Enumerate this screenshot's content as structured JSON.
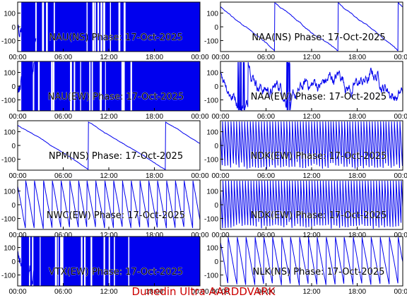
{
  "footer": {
    "text": "Dunedin Ultra AARDDVARK",
    "color": "#cc0000"
  },
  "colors": {
    "trace": "#0000ee",
    "axis": "#000000",
    "background": "#ffffff"
  },
  "chart_data": [
    {
      "type": "line",
      "title": "NAU(NS) Phase: 17-Oct-2025",
      "x_ticks": [
        "00:00",
        "06:00",
        "12:00",
        "18:00",
        "00:00"
      ],
      "y_ticks": [
        "100",
        "0",
        "-100"
      ],
      "xlim": [
        0,
        24
      ],
      "ylim": [
        -180,
        180
      ],
      "pattern": "solid-fill",
      "density": 0.95
    },
    {
      "type": "line",
      "title": "NAA(NS) Phase: 17-Oct-2025",
      "x_ticks": [
        "00:00",
        "06:00",
        "12:00",
        "18:00",
        "00:00"
      ],
      "y_ticks": [
        "100",
        "0",
        "-100"
      ],
      "xlim": [
        0,
        24
      ],
      "ylim": [
        -180,
        180
      ],
      "pattern": "slow-drift",
      "density": 0.4
    },
    {
      "type": "line",
      "title": "NAU(EW) Phase: 17-Oct-2025",
      "x_ticks": [
        "00:00",
        "06:00",
        "12:00",
        "18:00",
        "00:00"
      ],
      "y_ticks": [
        "100",
        "0",
        "-100"
      ],
      "xlim": [
        0,
        24
      ],
      "ylim": [
        -180,
        180
      ],
      "pattern": "solid-fill",
      "density": 0.95
    },
    {
      "type": "line",
      "title": "NAA(EW) Phase: 17-Oct-2025",
      "x_ticks": [
        "00:00",
        "06:00",
        "12:00",
        "18:00",
        "00:00"
      ],
      "y_ticks": [
        "100",
        "0",
        "-100"
      ],
      "xlim": [
        0,
        24
      ],
      "ylim": [
        -180,
        180
      ],
      "pattern": "noisy-drift",
      "density": 0.6
    },
    {
      "type": "line",
      "title": "NPM(NS) Phase: 17-Oct-2025",
      "x_ticks": [
        "00:00",
        "06:00",
        "12:00",
        "18:00",
        "00:00"
      ],
      "y_ticks": [
        "100",
        "0",
        "-100"
      ],
      "xlim": [
        0,
        24
      ],
      "ylim": [
        -180,
        180
      ],
      "pattern": "ramp-down",
      "density": 0.15
    },
    {
      "type": "line",
      "title": "NDK(EW) Phase: 17-Oct-2025",
      "x_ticks": [
        "00:00",
        "06:00",
        "12:00",
        "18:00",
        "00:00"
      ],
      "y_ticks": [
        "100",
        "0",
        "-100"
      ],
      "xlim": [
        0,
        24
      ],
      "ylim": [
        -180,
        180
      ],
      "pattern": "fast-sawtooth",
      "density": 0.8
    },
    {
      "type": "line",
      "title": "NWC(EW) Phase: 17-Oct-2025",
      "x_ticks": [
        "00:00",
        "06:00",
        "12:00",
        "18:00",
        "00:00"
      ],
      "y_ticks": [
        "100",
        "0",
        "-100"
      ],
      "xlim": [
        0,
        24
      ],
      "ylim": [
        -180,
        180
      ],
      "pattern": "sawtooth",
      "density": 0.3
    },
    {
      "type": "line",
      "title": "NDK(EW) Phase: 17-Oct-2025",
      "x_ticks": [
        "00:00",
        "06:00",
        "12:00",
        "18:00",
        "00:00"
      ],
      "y_ticks": [
        "100",
        "0",
        "-100"
      ],
      "xlim": [
        0,
        24
      ],
      "ylim": [
        -180,
        180
      ],
      "pattern": "fast-sawtooth",
      "density": 0.8
    },
    {
      "type": "line",
      "title": "VTX(EW) Phase: 17-Oct-2025",
      "x_ticks": [
        "00:00",
        "06:00",
        "12:00",
        "18:00",
        "00:00"
      ],
      "y_ticks": [
        "100",
        "0",
        "-100"
      ],
      "xlim": [
        0,
        24
      ],
      "ylim": [
        -180,
        180
      ],
      "pattern": "solid-fill",
      "density": 0.95
    },
    {
      "type": "line",
      "title": "NLK(NS) Phase: 17-Oct-2025",
      "x_ticks": [
        "00:00",
        "06:00",
        "12:00",
        "18:00",
        "00:00"
      ],
      "y_ticks": [
        "100",
        "0",
        "-100"
      ],
      "xlim": [
        0,
        24
      ],
      "ylim": [
        -180,
        180
      ],
      "pattern": "sawtooth",
      "density": 0.35
    }
  ]
}
